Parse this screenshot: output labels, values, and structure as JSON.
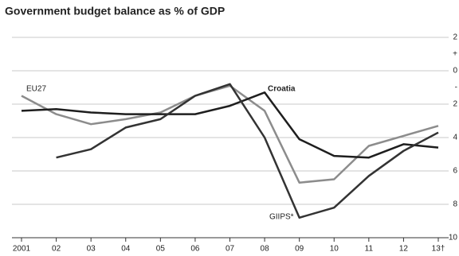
{
  "chart_data": {
    "type": "line",
    "title": "Government budget balance as % of GDP",
    "categories": [
      "2001",
      "02",
      "03",
      "04",
      "05",
      "06",
      "07",
      "08",
      "09",
      "10",
      "11",
      "12",
      "13†"
    ],
    "series": [
      {
        "name": "EU27",
        "color": "#8c8c8c",
        "values": [
          -1.5,
          -2.6,
          -3.2,
          -2.9,
          -2.5,
          -1.5,
          -0.9,
          -2.4,
          -6.7,
          -6.5,
          -4.5,
          -3.9,
          -3.3
        ]
      },
      {
        "name": "Croatia",
        "color": "#1e1e1e",
        "values": [
          -2.4,
          -2.3,
          -2.5,
          -2.6,
          -2.6,
          -2.6,
          -2.1,
          -1.3,
          -4.1,
          -5.1,
          -5.2,
          -4.4,
          -4.6
        ]
      },
      {
        "name": "GIIPS*",
        "color": "#333333",
        "values": [
          null,
          -5.2,
          -4.7,
          -3.4,
          -2.9,
          -1.5,
          -0.8,
          -4.0,
          -8.8,
          -8.2,
          -6.3,
          -4.8,
          -3.7
        ]
      }
    ],
    "ylim": [
      -10,
      2
    ],
    "yticks": [
      {
        "value": 2,
        "label": "2"
      },
      {
        "value": 0,
        "label": "0"
      },
      {
        "value": -2,
        "label": "2"
      },
      {
        "value": -4,
        "label": "4"
      },
      {
        "value": -6,
        "label": "6"
      },
      {
        "value": -8,
        "label": "8"
      },
      {
        "value": -10,
        "label": "10"
      }
    ],
    "sign_labels": {
      "plus": "+",
      "minus": "-"
    },
    "grid": true
  }
}
